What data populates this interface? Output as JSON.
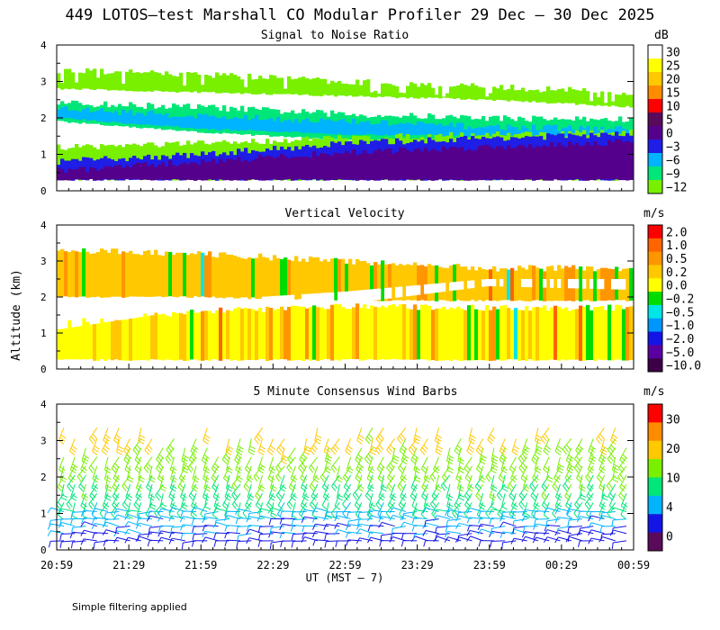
{
  "page": {
    "title": "449 LOTOS–test Marshall CO Modular Profiler 29 Dec – 30 Dec 2025",
    "footnote": "Simple filtering applied"
  },
  "chart_data": [
    {
      "type": "heatmap",
      "title": "Signal to Noise Ratio",
      "ylabel": "",
      "xlabel": "",
      "ylim": [
        0,
        4
      ],
      "yticks": [
        "0",
        "1",
        "2",
        "3",
        "4"
      ],
      "colorbar": {
        "unit": "dB",
        "labels": [
          "30",
          "25",
          "20",
          "15",
          "10",
          "5",
          "0",
          "−3",
          "−6",
          "−9",
          "−12"
        ],
        "colors": [
          "#ffffff",
          "#ffff00",
          "#ffc800",
          "#ff8c00",
          "#ff0000",
          "#5a0a5a",
          "#55008c",
          "#1e1ee6",
          "#00b4ff",
          "#00e678",
          "#78f000"
        ]
      },
      "layers": [
        {
          "name": "high band",
          "color": "#78f000",
          "x": [
            0,
            1,
            2,
            3,
            4
          ],
          "low_km": [
            2.8,
            2.7,
            2.6,
            2.5,
            2.3
          ],
          "high_km": [
            3.3,
            3.2,
            3.0,
            2.85,
            2.7
          ]
        },
        {
          "name": "mid band",
          "color": "#00e678",
          "x": [
            0,
            1,
            2,
            3,
            4
          ],
          "low_km": [
            1.9,
            1.6,
            1.4,
            1.35,
            1.3
          ],
          "high_km": [
            2.4,
            2.3,
            2.1,
            2.0,
            1.95
          ]
        },
        {
          "name": "mid core",
          "color": "#00b4ff",
          "x": [
            0,
            1,
            2,
            3,
            4
          ],
          "low_km": [
            2.0,
            1.7,
            1.55,
            1.5,
            1.5
          ],
          "high_km": [
            2.25,
            2.05,
            1.9,
            1.75,
            1.7
          ]
        },
        {
          "name": "low band",
          "color": "#78f000",
          "x": [
            0,
            1,
            2,
            3,
            4
          ],
          "low_km": [
            0.3,
            0.3,
            0.3,
            0.3,
            0.3
          ],
          "high_km": [
            1.2,
            1.3,
            1.45,
            1.55,
            1.6
          ]
        },
        {
          "name": "blue layer",
          "color": "#1e1ee6",
          "x": [
            0,
            1,
            2,
            3,
            4
          ],
          "low_km": [
            0.3,
            0.3,
            0.3,
            0.3,
            0.3
          ],
          "high_km": [
            0.8,
            1.0,
            1.3,
            1.45,
            1.55
          ]
        },
        {
          "name": "purple layer",
          "color": "#55008c",
          "x": [
            0,
            1,
            2,
            3,
            4
          ],
          "low_km": [
            0.3,
            0.3,
            0.3,
            0.3,
            0.3
          ],
          "high_km": [
            0.55,
            0.8,
            1.05,
            1.2,
            1.35
          ]
        }
      ]
    },
    {
      "type": "heatmap",
      "title": "Vertical Velocity",
      "ylabel": "Altitude (km)",
      "ylim": [
        0,
        4
      ],
      "yticks": [
        "0",
        "1",
        "2",
        "3",
        "4"
      ],
      "colorbar": {
        "unit": "m/s",
        "labels": [
          "2.0",
          "1.0",
          "0.5",
          "0.2",
          "0.0",
          "−0.2",
          "−0.5",
          "−1.0",
          "−2.0",
          "−5.0",
          "−10.0"
        ],
        "colors": [
          "#ff0000",
          "#ff6400",
          "#ff9600",
          "#ffc800",
          "#ffff00",
          "#00dc00",
          "#00e6e6",
          "#0096ff",
          "#1414e6",
          "#5a00a0",
          "#3c0046"
        ]
      },
      "layers": [
        {
          "name": "upper echo",
          "color": "#ffc800",
          "x": [
            0,
            1,
            2,
            3,
            4
          ],
          "low_km": [
            2.0,
            2.0,
            1.9,
            1.9,
            1.9
          ],
          "high_km": [
            3.3,
            3.2,
            3.0,
            2.8,
            2.8
          ]
        },
        {
          "name": "lower echo",
          "color": "#ffff00",
          "x": [
            0,
            1,
            2,
            3,
            4
          ],
          "low_km": [
            0.25,
            0.25,
            0.25,
            0.25,
            0.25
          ],
          "high_km": [
            1.3,
            1.6,
            1.75,
            1.7,
            1.7
          ]
        }
      ],
      "gaps": [
        {
          "x": [
            0,
            1,
            2,
            3,
            4
          ],
          "low_km": [
            1.1,
            1.7,
            1.8,
            2.3,
            2.2
          ],
          "high_km": [
            1.6,
            1.9,
            2.15,
            2.5,
            2.5
          ]
        }
      ]
    },
    {
      "type": "wind-barbs",
      "title": "5 Minute Consensus Wind Barbs",
      "ylim": [
        0,
        4
      ],
      "yticks": [
        "0",
        "1",
        "2",
        "3",
        "4"
      ],
      "xlabel": "UT  (MST – 7)",
      "xticks": [
        "20:59",
        "21:29",
        "21:59",
        "22:29",
        "22:59",
        "23:29",
        "23:59",
        "00:29",
        "00:59"
      ],
      "colorbar": {
        "unit": "m/s",
        "labels": [
          "30",
          "20",
          "10",
          "4",
          "0"
        ],
        "colors": [
          "#ff0000",
          "#ff8c00",
          "#ffc800",
          "#78f000",
          "#00e678",
          "#00b4ff",
          "#1414e6",
          "#5a0a5a"
        ]
      },
      "speed_profile": {
        "heights_km": [
          0.25,
          0.6,
          1.0,
          1.5,
          2.0,
          2.5,
          3.0,
          3.4
        ],
        "speeds_ms": [
          3,
          4,
          5,
          8,
          10,
          12,
          14,
          15
        ]
      }
    }
  ]
}
